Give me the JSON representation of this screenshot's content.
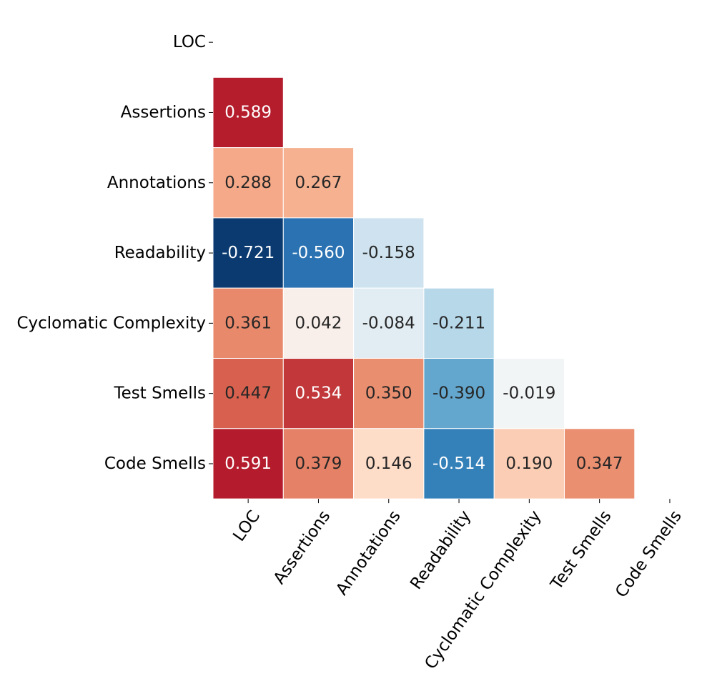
{
  "chart_data": {
    "type": "heatmap",
    "title": "",
    "variables": [
      "LOC",
      "Assertions",
      "Annotations",
      "Readability",
      "Cyclomatic Complexity",
      "Test Smells",
      "Code Smells"
    ],
    "mask": "upper-triangle-and-diagonal",
    "value_range": [
      -0.75,
      0.75
    ],
    "colormap": "RdBu_r",
    "values": [
      [
        null,
        null,
        null,
        null,
        null,
        null,
        null
      ],
      [
        0.589,
        null,
        null,
        null,
        null,
        null,
        null
      ],
      [
        0.288,
        0.267,
        null,
        null,
        null,
        null,
        null
      ],
      [
        -0.721,
        -0.56,
        -0.158,
        null,
        null,
        null,
        null
      ],
      [
        0.361,
        0.042,
        -0.084,
        -0.211,
        null,
        null,
        null
      ],
      [
        0.447,
        0.534,
        0.35,
        -0.39,
        -0.019,
        null,
        null
      ],
      [
        0.591,
        0.379,
        0.146,
        -0.514,
        0.19,
        0.347,
        null
      ]
    ],
    "value_labels": [
      [
        null,
        null,
        null,
        null,
        null,
        null,
        null
      ],
      [
        "0.589",
        null,
        null,
        null,
        null,
        null,
        null
      ],
      [
        "0.288",
        "0.267",
        null,
        null,
        null,
        null,
        null
      ],
      [
        "-0.721",
        "-0.560",
        "-0.158",
        null,
        null,
        null,
        null
      ],
      [
        "0.361",
        "0.042",
        "-0.084",
        "-0.211",
        null,
        null,
        null
      ],
      [
        "0.447",
        "0.534",
        "0.350",
        "-0.390",
        "-0.019",
        null,
        null
      ],
      [
        "0.591",
        "0.379",
        "0.146",
        "-0.514",
        "0.190",
        "0.347",
        null
      ]
    ],
    "colorbar": false
  }
}
